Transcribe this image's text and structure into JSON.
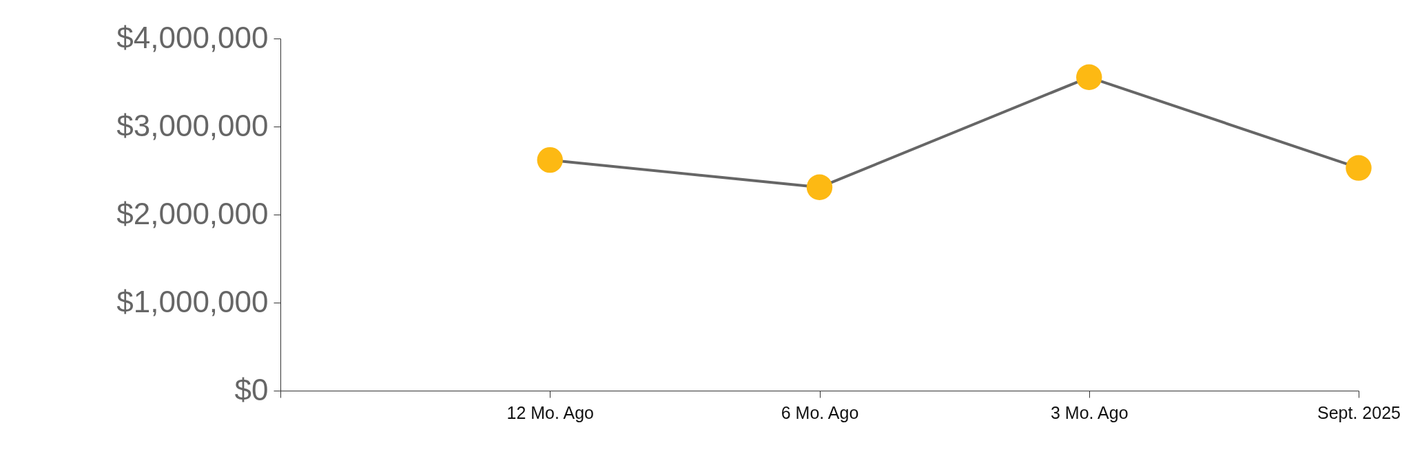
{
  "chart_data": {
    "type": "line",
    "categories": [
      null,
      "12 Mo. Ago",
      "6 Mo. Ago",
      "3 Mo. Ago",
      "Sept. 2025"
    ],
    "series": [
      {
        "color": "#666666",
        "colors": [
          null,
          "#fdb913",
          "#fdb913",
          "#fdb913",
          "#fdb913"
        ],
        "values": [
          null,
          2620000,
          2310000,
          3560000,
          2530000
        ]
      }
    ],
    "ylim": [
      0,
      4000000
    ],
    "yticks": [
      {
        "value": 0,
        "label": "$0"
      },
      {
        "value": 1000000,
        "label": "$1,000,000"
      },
      {
        "value": 2000000,
        "label": "$2,000,000"
      },
      {
        "value": 3000000,
        "label": "$3,000,000"
      },
      {
        "value": 4000000,
        "label": "$4,000,000"
      }
    ],
    "marker": "circle",
    "grid": false
  }
}
